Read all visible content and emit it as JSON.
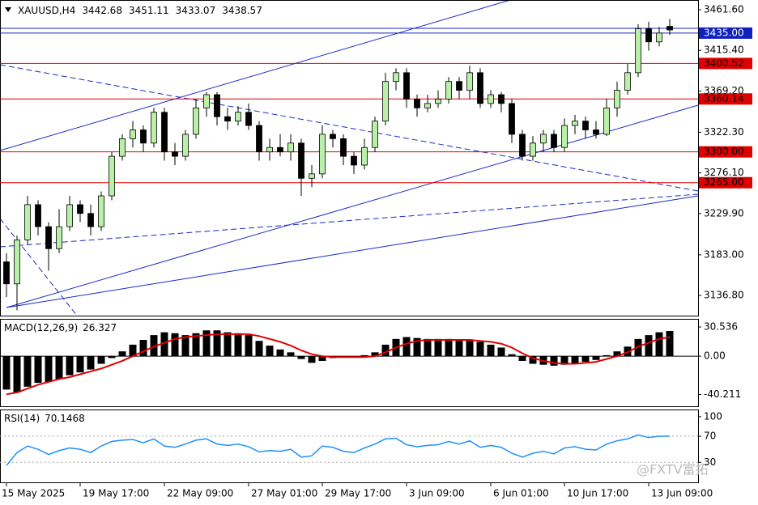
{
  "chart_data": [
    {
      "type": "candlestick",
      "title": "XAUUSD,H4",
      "watermark": "@FXTV富拓",
      "categories": [
        "15 May 2025",
        null,
        null,
        null,
        null,
        null,
        null,
        "19 May 17:00",
        null,
        null,
        null,
        null,
        null,
        null,
        null,
        "22 May 09:00",
        null,
        null,
        null,
        null,
        null,
        null,
        null,
        "27 May 01:00",
        null,
        null,
        null,
        null,
        null,
        null,
        "29 May 17:00",
        null,
        null,
        null,
        null,
        null,
        null,
        null,
        "3 Jun 09:00",
        null,
        null,
        null,
        null,
        null,
        null,
        null,
        "6 Jun 01:00",
        null,
        null,
        null,
        null,
        null,
        null,
        "10 Jun 17:00",
        null,
        null,
        null,
        null,
        null,
        null,
        null,
        "13 Jun 09:00",
        null,
        null
      ],
      "open": [
        3175,
        3150,
        3200,
        3240,
        3215,
        3190,
        3215,
        3240,
        3230,
        3215,
        3250,
        3295,
        3315,
        3325,
        3310,
        3345,
        3300,
        3295,
        3320,
        3350,
        3365,
        3340,
        3335,
        3345,
        3330,
        3300,
        3305,
        3300,
        3310,
        3270,
        3275,
        3320,
        3315,
        3295,
        3285,
        3305,
        3335,
        3380,
        3390,
        3360,
        3350,
        3355,
        3360,
        3380,
        3370,
        3390,
        3355,
        3365,
        3355,
        3320,
        3295,
        3310,
        3320,
        3305,
        3330,
        3335,
        3325,
        3320,
        3350,
        3370,
        3390,
        3440,
        3425,
        3442.68
      ],
      "high": [
        3185,
        3205,
        3250,
        3245,
        3220,
        3235,
        3250,
        3245,
        3240,
        3255,
        3300,
        3320,
        3335,
        3330,
        3350,
        3350,
        3310,
        3325,
        3360,
        3368,
        3368,
        3350,
        3352,
        3355,
        3335,
        3315,
        3320,
        3320,
        3315,
        3285,
        3330,
        3325,
        3320,
        3300,
        3315,
        3340,
        3390,
        3395,
        3395,
        3365,
        3365,
        3370,
        3385,
        3385,
        3398,
        3395,
        3370,
        3368,
        3360,
        3325,
        3318,
        3325,
        3325,
        3338,
        3342,
        3340,
        3335,
        3360,
        3380,
        3400,
        3445,
        3448,
        3442,
        3451.11
      ],
      "low": [
        3135,
        3120,
        3195,
        3205,
        3165,
        3185,
        3210,
        3220,
        3205,
        3210,
        3245,
        3290,
        3305,
        3300,
        3305,
        3290,
        3285,
        3290,
        3315,
        3340,
        3330,
        3325,
        3330,
        3325,
        3290,
        3290,
        3295,
        3290,
        3250,
        3260,
        3270,
        3305,
        3285,
        3275,
        3280,
        3300,
        3330,
        3370,
        3350,
        3340,
        3345,
        3350,
        3355,
        3360,
        3360,
        3350,
        3350,
        3345,
        3310,
        3290,
        3290,
        3300,
        3300,
        3300,
        3320,
        3315,
        3315,
        3318,
        3340,
        3365,
        3385,
        3415,
        3420,
        3433.07
      ],
      "close": [
        3150,
        3200,
        3240,
        3215,
        3190,
        3215,
        3240,
        3230,
        3215,
        3250,
        3295,
        3315,
        3325,
        3310,
        3345,
        3300,
        3295,
        3320,
        3350,
        3365,
        3340,
        3335,
        3345,
        3330,
        3300,
        3305,
        3300,
        3310,
        3270,
        3275,
        3320,
        3315,
        3295,
        3285,
        3305,
        3335,
        3380,
        3390,
        3360,
        3350,
        3355,
        3360,
        3380,
        3370,
        3390,
        3355,
        3365,
        3355,
        3320,
        3295,
        3310,
        3320,
        3305,
        3330,
        3335,
        3325,
        3320,
        3350,
        3370,
        3390,
        3440,
        3425,
        3435,
        3438.57
      ],
      "up_color": "#b8f0a8",
      "down_color": "#000000",
      "ylim": [
        3113.9,
        3471.7
      ],
      "yticks": [
        {
          "value": 3461.6,
          "label": "3461.60"
        },
        {
          "value": 3415.4,
          "label": "3415.40"
        },
        {
          "value": 3369.2,
          "label": "3369.20"
        },
        {
          "value": 3322.3,
          "label": "3322.30"
        },
        {
          "value": 3276.1,
          "label": "3276.10"
        },
        {
          "value": 3229.9,
          "label": "3229.90"
        },
        {
          "value": 3183,
          "label": "3183.00"
        },
        {
          "value": 3136.8,
          "label": "3136.80"
        }
      ],
      "levels": [
        {
          "value": 3435,
          "label": "3435.00",
          "color": "#1020c0"
        },
        {
          "value": 3400.52,
          "label": "3400.52",
          "color": "#e00000"
        },
        {
          "value": 3360.14,
          "label": "3360.14",
          "color": "#e00000"
        },
        {
          "value": 3300,
          "label": "3300.00",
          "color": "#e00000"
        },
        {
          "value": 3265,
          "label": "3265.00",
          "color": "#e00000"
        }
      ]
    },
    {
      "type": "macd",
      "title": "MACD(12,26,9)",
      "histogram": {
        "color": "#000000",
        "values": [
          -35,
          -38,
          -32,
          -28,
          -27,
          -24,
          -20,
          -17,
          -14,
          -8,
          -2,
          5,
          12,
          17,
          22,
          25,
          24,
          22,
          24,
          27,
          27,
          25,
          24,
          22,
          16,
          11,
          7,
          4,
          -3,
          -7,
          -5,
          -2,
          -1,
          -1,
          1,
          4,
          12,
          18,
          20,
          19,
          18,
          18,
          18,
          17,
          17,
          15,
          12,
          9,
          2,
          -5,
          -8,
          -9,
          -10,
          -9,
          -8,
          -6,
          -4,
          1,
          5,
          10,
          18,
          22,
          25,
          26.327
        ]
      },
      "signal": {
        "color": "#e00000",
        "values": [
          -40,
          -38,
          -34,
          -30,
          -27,
          -24,
          -22,
          -19,
          -16,
          -13,
          -9,
          -5,
          0,
          5,
          10,
          14,
          18,
          20,
          21,
          22,
          23,
          23,
          23,
          23,
          21,
          18,
          15,
          11,
          6,
          2,
          0,
          -1,
          -1,
          -1,
          -1,
          0,
          4,
          9,
          13,
          16,
          17,
          17,
          17,
          17,
          17,
          16,
          15,
          13,
          9,
          3,
          -2,
          -5,
          -7,
          -8,
          -8,
          -7,
          -6,
          -3,
          0,
          4,
          10,
          14,
          18,
          20
        ]
      },
      "ylim": [
        -52.5,
        38.2
      ],
      "yticks": [
        30.536,
        {
          "value": 0,
          "label": "0.00"
        },
        -40.211
      ]
    },
    {
      "type": "rsi",
      "title": "RSI(14)",
      "color": "#1e90ff",
      "values": [
        25,
        45,
        55,
        50,
        42,
        48,
        52,
        50,
        45,
        55,
        62,
        64,
        65,
        60,
        66,
        55,
        53,
        58,
        64,
        66,
        58,
        56,
        58,
        54,
        46,
        48,
        47,
        50,
        38,
        40,
        55,
        53,
        47,
        45,
        52,
        58,
        66,
        67,
        57,
        54,
        56,
        57,
        62,
        58,
        63,
        53,
        56,
        53,
        44,
        38,
        44,
        47,
        43,
        52,
        54,
        50,
        49,
        58,
        63,
        66,
        72,
        68,
        70,
        70.1468
      ],
      "ylim": [
        -0.7,
        109.8
      ],
      "yticks": [
        100,
        70,
        30
      ]
    }
  ]
}
